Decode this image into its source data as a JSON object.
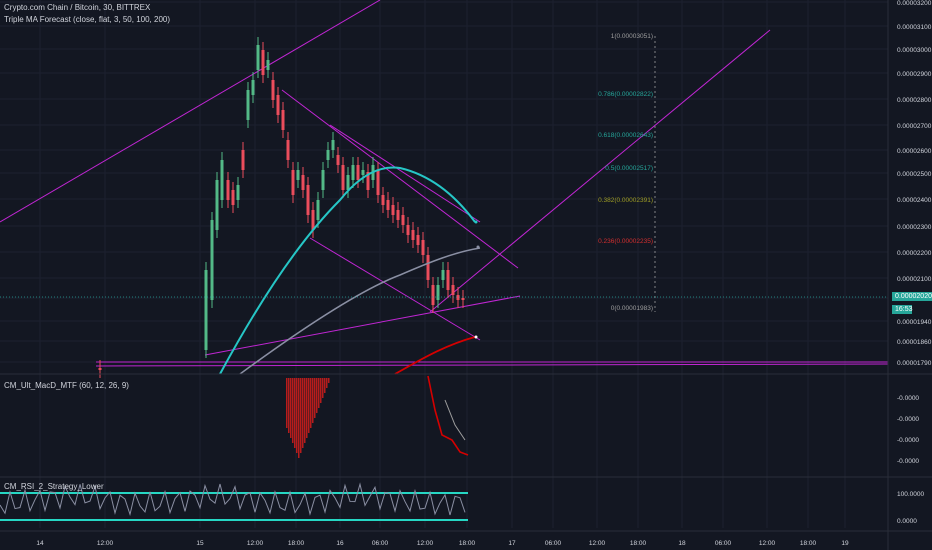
{
  "header": {
    "symbol_line": "Crypto.com Chain / Bitcoin, 30, BITTREX",
    "indicator_line": "Triple MA Forecast (close, flat, 3, 50, 100, 200)"
  },
  "macd_label": "CM_Ult_MacD_MTF (60, 12, 26, 9)",
  "rsi_label": "CM_RSI_2_Strategy_Lower",
  "price_axis": {
    "ticks": [
      "0.00003200",
      "0.00003100",
      "0.00003000",
      "0.00002900",
      "0.00002800",
      "0.00002700",
      "0.00002600",
      "0.00002500",
      "0.00002400",
      "0.00002300",
      "0.00002200",
      "0.00002100",
      "0.00002020",
      "0.00001940",
      "0.00001860",
      "0.00001790"
    ],
    "last_price": "0.00002020",
    "last_badge": "16:53"
  },
  "macd_axis": {
    "ticks": [
      "-0.0000",
      "-0.0000",
      "-0.0000",
      "-0.0000"
    ]
  },
  "rsi_axis": {
    "ticks": [
      "100.0000",
      "0.0000"
    ]
  },
  "time_axis": {
    "ticks": [
      "14",
      "12:00",
      "15",
      "12:00",
      "18:00",
      "16",
      "06:00",
      "12:00",
      "18:00",
      "17",
      "06:00",
      "12:00",
      "18:00",
      "18",
      "06:00",
      "12:00",
      "18:00",
      "19"
    ]
  },
  "fib_levels": [
    {
      "label": "1(0.00003051)",
      "color": "#9e9e9e"
    },
    {
      "label": "0.786(0.00002822)",
      "color": "#26a69a"
    },
    {
      "label": "0.618(0.00002643)",
      "color": "#26a69a"
    },
    {
      "label": "0.5(0.00002517)",
      "color": "#26a69a"
    },
    {
      "label": "0.382(0.00002391)",
      "color": "#9e9d24"
    },
    {
      "label": "0.236(0.00002235)",
      "color": "#d32f2f"
    },
    {
      "label": "0(0.00001983)",
      "color": "#9e9e9e"
    }
  ],
  "colors": {
    "background": "#131722",
    "up_candle": "#53b987",
    "down_candle": "#eb4d5c",
    "trendline": "#c026d3",
    "ma_fast": "#26c6c6",
    "ma_mid": "#8a8fa3",
    "ma_slow": "#d50000",
    "rsi_band": "#26d7c4"
  },
  "chart_data": {
    "type": "candlestick",
    "x_range": [
      "14",
      "19"
    ],
    "y_range": [
      1.72e-05,
      3.2e-05
    ],
    "price_start": 1.78e-05,
    "price_peak": 3.2e-05,
    "price_last": 2.02e-05,
    "fib_retracement": [
      {
        "level": 1,
        "price": 3.051e-05
      },
      {
        "level": 0.786,
        "price": 2.822e-05
      },
      {
        "level": 0.618,
        "price": 2.643e-05
      },
      {
        "level": 0.5,
        "price": 2.517e-05
      },
      {
        "level": 0.382,
        "price": 2.391e-05
      },
      {
        "level": 0.236,
        "price": 2.235e-05
      },
      {
        "level": 0,
        "price": 1.983e-05
      }
    ]
  }
}
